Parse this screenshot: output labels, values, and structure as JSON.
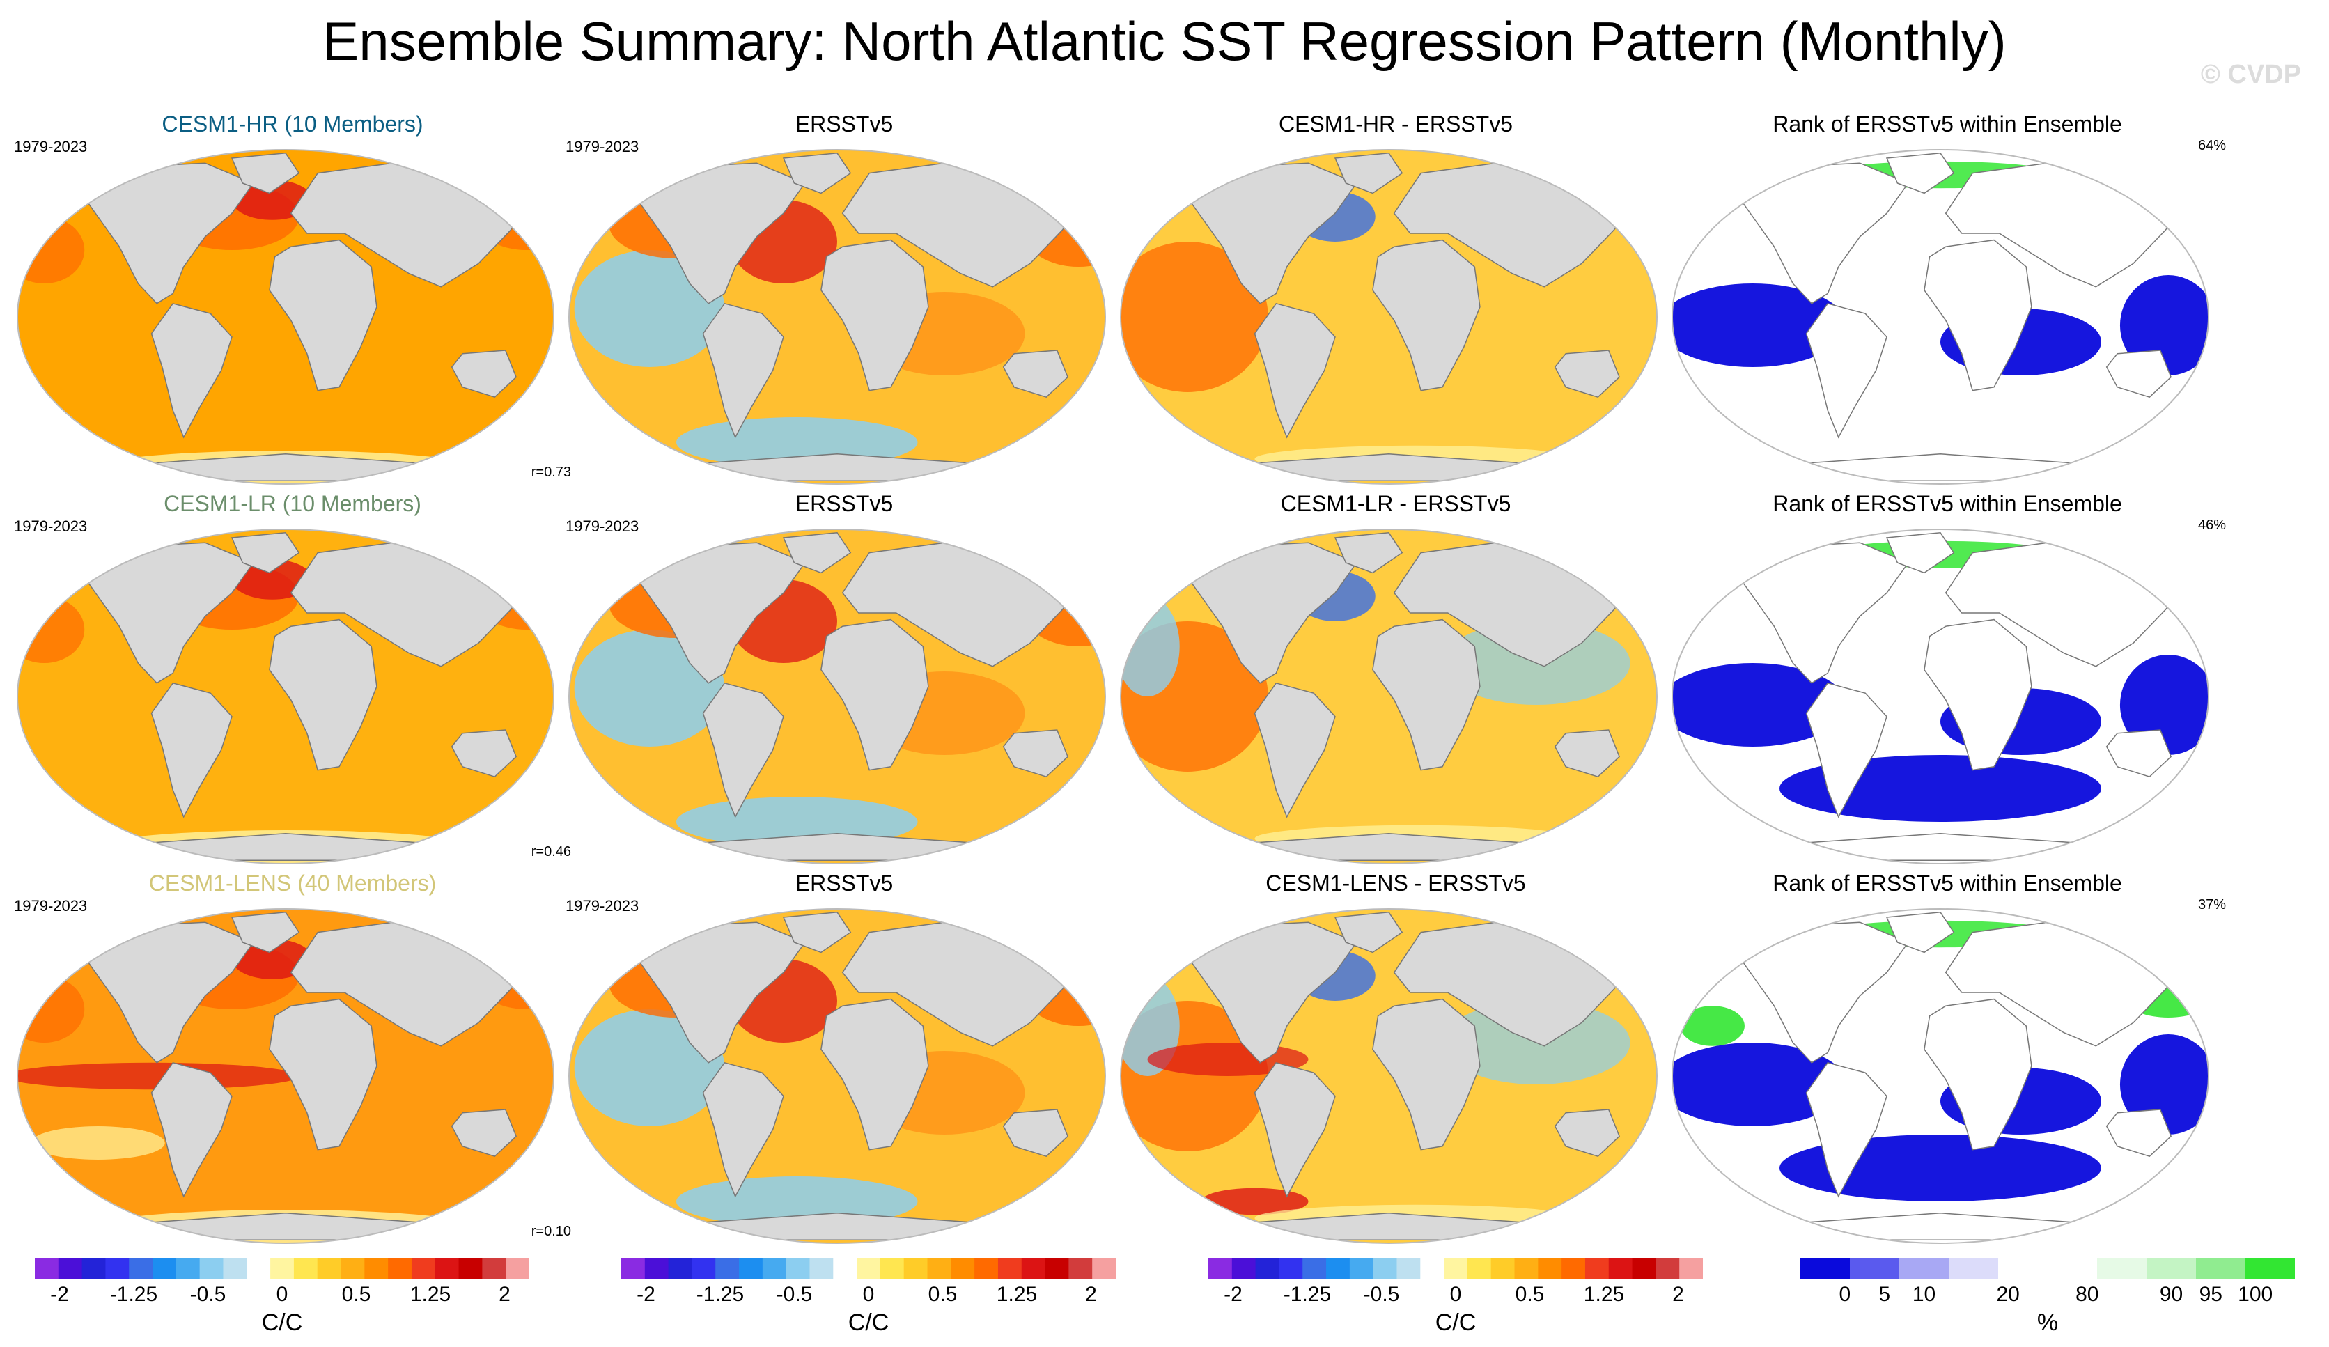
{
  "title": "Ensemble Summary: North Atlantic SST Regression Pattern (Monthly)",
  "watermark": "© CVDP",
  "period": "1979-2023",
  "rows": [
    {
      "model_label": "CESM1-HR (10 Members)",
      "model_color": "#0b5e83",
      "r": "r=0.73",
      "diff_title": "CESM1-HR - ERSSTv5",
      "rank_pct": "64%"
    },
    {
      "model_label": "CESM1-LR (10 Members)",
      "model_color": "#6b8e6b",
      "r": "r=0.46",
      "diff_title": "CESM1-LR - ERSSTv5",
      "rank_pct": "46%"
    },
    {
      "model_label": "CESM1-LENS (40 Members)",
      "model_color": "#d2c678",
      "r": "r=0.10",
      "diff_title": "CESM1-LENS - ERSSTv5",
      "rank_pct": "37%"
    }
  ],
  "obs_title": "ERSSTv5",
  "rank_title": "Rank of ERSSTv5 within Ensemble",
  "colorbar_sst": {
    "unit": "C/C",
    "tick_labels": [
      "-2",
      "-1.25",
      "-0.5",
      "0",
      "0.5",
      "1.25",
      "2"
    ],
    "colors": [
      "#8a2be2",
      "#4b0fd8",
      "#2323d8",
      "#3232f0",
      "#3a6ee6",
      "#1c8ef0",
      "#46aaf0",
      "#8ccef0",
      "#bee0f0",
      "#ffffff",
      "#fff5a0",
      "#ffe650",
      "#ffcc28",
      "#ffaf14",
      "#ff8c00",
      "#ff6a00",
      "#f03c1e",
      "#dc1414",
      "#c80000",
      "#d23c3c",
      "#f5a0a0"
    ]
  },
  "colorbar_rank": {
    "unit": "%",
    "tick_labels": [
      "0",
      "5",
      "10",
      "20",
      "80",
      "90",
      "95",
      "100"
    ],
    "colors": [
      "#0a0adc",
      "#5a5aee",
      "#a8a8f4",
      "#dcdcfa",
      "#ffffff",
      "#ffffff",
      "#e6fae6",
      "#c4f4c4",
      "#90ec90",
      "#32e632"
    ]
  },
  "map_colors": {
    "land": "#d9d9d9",
    "coast": "#777777",
    "sst_base_hr": "#ffa500",
    "sst_base_lr": "#ffb10f",
    "sst_base_lens": "#ff9a10",
    "obs_base": "#ffbf30",
    "diff_base": "#ffcc40",
    "rank_base": "#ffffff",
    "rank_low": "#0a0adc",
    "rank_high": "#32e632",
    "warm": "#ff6a00",
    "hot": "#dc1414",
    "cool": "#8ccef0",
    "blue": "#3a6ee6",
    "yellow": "#fff5a0"
  }
}
